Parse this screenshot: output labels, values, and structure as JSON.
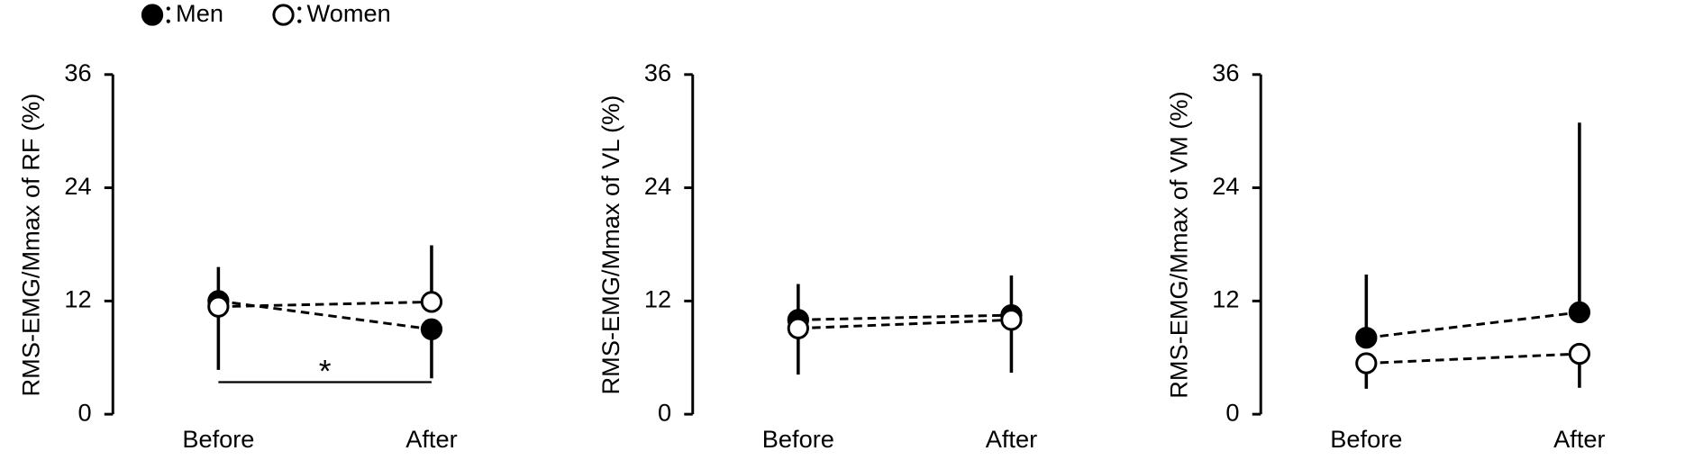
{
  "chart_data": [
    {
      "type": "line",
      "ylabel": "RMS-EMG/Mmax of RF (%)",
      "categories": [
        "Before",
        "After"
      ],
      "ylim": [
        0,
        36
      ],
      "yticks": [
        0,
        12,
        24,
        36
      ],
      "series": [
        {
          "name": "Men",
          "color": "#000000",
          "values": [
            12.0,
            9.0
          ],
          "errors": [
            3.6,
            5.2
          ]
        },
        {
          "name": "Women",
          "color": "#ffffff",
          "values": [
            11.4,
            11.9
          ],
          "errors": [
            6.7,
            6.0
          ]
        }
      ],
      "significance": {
        "text": "*",
        "y": 3.4
      }
    },
    {
      "type": "line",
      "ylabel": "RMS-EMG/Mmax of VL (%)",
      "categories": [
        "Before",
        "After"
      ],
      "ylim": [
        0,
        36
      ],
      "yticks": [
        0,
        12,
        24,
        36
      ],
      "series": [
        {
          "name": "Men",
          "color": "#000000",
          "values": [
            10.0,
            10.5
          ],
          "errors": [
            3.8,
            4.2
          ]
        },
        {
          "name": "Women",
          "color": "#ffffff",
          "values": [
            9.1,
            10.0
          ],
          "errors": [
            4.9,
            5.6
          ]
        }
      ]
    },
    {
      "type": "line",
      "ylabel": "RMS-EMG/Mmax of VM (%)",
      "categories": [
        "Before",
        "After"
      ],
      "ylim": [
        0,
        36
      ],
      "yticks": [
        0,
        12,
        24,
        36
      ],
      "series": [
        {
          "name": "Men",
          "color": "#000000",
          "values": [
            8.1,
            10.8
          ],
          "errors": [
            6.7,
            20.1
          ]
        },
        {
          "name": "Women",
          "color": "#ffffff",
          "values": [
            5.4,
            6.4
          ],
          "errors": [
            2.7,
            3.6
          ]
        }
      ]
    }
  ]
}
